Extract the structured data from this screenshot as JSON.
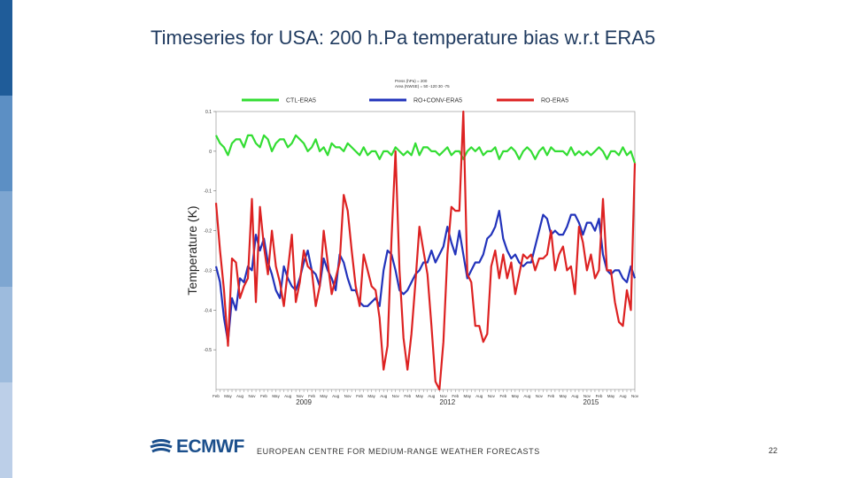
{
  "slide": {
    "title": "Timeseries for USA: 200 h.Pa temperature bias w.r.t ERA5",
    "footer": "EUROPEAN CENTRE FOR MEDIUM-RANGE WEATHER FORECASTS",
    "page_number": "22",
    "logo_text": "ECMWF"
  },
  "colors": {
    "sidebar": [
      "#1f5c99",
      "#5c8fc4",
      "#7ea6d1",
      "#9dbbdd",
      "#bccfe8"
    ],
    "brand": "#1b4f8c"
  },
  "chart_data": {
    "type": "line",
    "title": "",
    "info_lines": [
      "Press (hPa) = 200",
      "Area (NWSE) = 50 -120 30 -75"
    ],
    "xlabel": "",
    "ylabel": "Temperature (K)",
    "ylim": [
      -0.6,
      0.1
    ],
    "yticks": [
      0.1,
      0,
      -0.1,
      -0.2,
      -0.3,
      -0.4,
      -0.5
    ],
    "month_labels": [
      "Feb",
      "May",
      "Aug",
      "Nov"
    ],
    "year_labels": [
      {
        "label": "2009",
        "index": 22
      },
      {
        "label": "2012",
        "index": 58
      },
      {
        "label": "2015",
        "index": 94
      }
    ],
    "n_points": 106,
    "series": [
      {
        "name": "CTL-ERA5",
        "color": "#33dd33",
        "values": [
          0.04,
          0.02,
          0.01,
          -0.01,
          0.02,
          0.03,
          0.03,
          0.01,
          0.04,
          0.04,
          0.02,
          0.01,
          0.04,
          0.03,
          0.0,
          0.02,
          0.03,
          0.03,
          0.01,
          0.02,
          0.04,
          0.03,
          0.02,
          0.0,
          0.01,
          0.03,
          0.0,
          0.01,
          -0.01,
          0.02,
          0.01,
          0.01,
          0.0,
          0.02,
          0.01,
          0.0,
          -0.01,
          0.01,
          -0.01,
          0.0,
          0.0,
          -0.02,
          0.0,
          0.0,
          -0.01,
          0.01,
          0.0,
          -0.01,
          0.0,
          -0.01,
          0.02,
          -0.01,
          0.01,
          0.01,
          0.0,
          0.0,
          -0.01,
          0.0,
          0.01,
          -0.01,
          0.0,
          0.0,
          -0.02,
          0.0,
          0.01,
          0.0,
          0.01,
          -0.01,
          0.0,
          0.0,
          0.01,
          -0.02,
          0.0,
          0.0,
          0.01,
          0.0,
          -0.02,
          0.0,
          0.01,
          0.0,
          -0.02,
          0.0,
          0.01,
          -0.01,
          0.01,
          0.0,
          0.0,
          0.0,
          -0.01,
          0.01,
          -0.01,
          0.0,
          -0.01,
          0.0,
          -0.01,
          0.0,
          0.01,
          0.0,
          -0.02,
          0.0,
          0.0,
          -0.01,
          0.01,
          -0.01,
          0.0,
          -0.03
        ]
      },
      {
        "name": "RO+CONV-ERA5",
        "color": "#2233bb",
        "values": [
          -0.29,
          -0.33,
          -0.42,
          -0.48,
          -0.37,
          -0.4,
          -0.32,
          -0.33,
          -0.29,
          -0.3,
          -0.21,
          -0.25,
          -0.22,
          -0.28,
          -0.31,
          -0.35,
          -0.37,
          -0.29,
          -0.32,
          -0.34,
          -0.35,
          -0.32,
          -0.28,
          -0.25,
          -0.3,
          -0.31,
          -0.34,
          -0.27,
          -0.3,
          -0.32,
          -0.35,
          -0.26,
          -0.28,
          -0.32,
          -0.35,
          -0.35,
          -0.38,
          -0.39,
          -0.39,
          -0.38,
          -0.37,
          -0.39,
          -0.3,
          -0.25,
          -0.26,
          -0.3,
          -0.35,
          -0.36,
          -0.35,
          -0.33,
          -0.31,
          -0.3,
          -0.28,
          -0.28,
          -0.25,
          -0.28,
          -0.26,
          -0.24,
          -0.19,
          -0.23,
          -0.26,
          -0.2,
          -0.26,
          -0.32,
          -0.3,
          -0.28,
          -0.28,
          -0.26,
          -0.22,
          -0.21,
          -0.19,
          -0.15,
          -0.22,
          -0.25,
          -0.27,
          -0.26,
          -0.28,
          -0.29,
          -0.28,
          -0.28,
          -0.24,
          -0.2,
          -0.16,
          -0.17,
          -0.21,
          -0.2,
          -0.21,
          -0.21,
          -0.19,
          -0.16,
          -0.16,
          -0.18,
          -0.21,
          -0.18,
          -0.18,
          -0.2,
          -0.17,
          -0.26,
          -0.3,
          -0.31,
          -0.3,
          -0.3,
          -0.32,
          -0.33,
          -0.29,
          -0.32
        ]
      },
      {
        "name": "RO-ERA5",
        "color": "#dd2222",
        "values": [
          -0.13,
          -0.25,
          -0.35,
          -0.49,
          -0.27,
          -0.28,
          -0.37,
          -0.34,
          -0.32,
          -0.12,
          -0.38,
          -0.14,
          -0.24,
          -0.31,
          -0.2,
          -0.29,
          -0.33,
          -0.39,
          -0.3,
          -0.21,
          -0.38,
          -0.33,
          -0.25,
          -0.29,
          -0.3,
          -0.39,
          -0.34,
          -0.2,
          -0.28,
          -0.36,
          -0.32,
          -0.28,
          -0.11,
          -0.15,
          -0.25,
          -0.34,
          -0.39,
          -0.26,
          -0.3,
          -0.34,
          -0.35,
          -0.42,
          -0.55,
          -0.49,
          -0.22,
          0.0,
          -0.3,
          -0.47,
          -0.55,
          -0.46,
          -0.33,
          -0.19,
          -0.25,
          -0.31,
          -0.44,
          -0.58,
          -0.6,
          -0.48,
          -0.26,
          -0.14,
          -0.15,
          -0.15,
          0.1,
          -0.31,
          -0.33,
          -0.44,
          -0.44,
          -0.48,
          -0.46,
          -0.29,
          -0.25,
          -0.32,
          -0.26,
          -0.32,
          -0.28,
          -0.36,
          -0.31,
          -0.26,
          -0.27,
          -0.26,
          -0.3,
          -0.27,
          -0.27,
          -0.26,
          -0.2,
          -0.3,
          -0.26,
          -0.24,
          -0.3,
          -0.29,
          -0.36,
          -0.19,
          -0.23,
          -0.3,
          -0.26,
          -0.32,
          -0.3,
          -0.12,
          -0.3,
          -0.3,
          -0.38,
          -0.43,
          -0.44,
          -0.35,
          -0.4,
          -0.03
        ]
      }
    ]
  }
}
